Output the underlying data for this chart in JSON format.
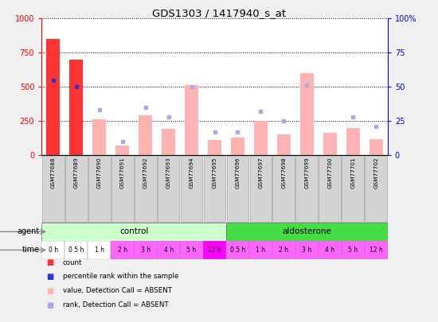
{
  "title": "GDS1303 / 1417940_s_at",
  "samples": [
    "GSM77688",
    "GSM77689",
    "GSM77690",
    "GSM77691",
    "GSM77692",
    "GSM77693",
    "GSM77694",
    "GSM77695",
    "GSM77696",
    "GSM77697",
    "GSM77698",
    "GSM77699",
    "GSM77700",
    "GSM77701",
    "GSM77702"
  ],
  "bar_values": [
    850,
    700,
    260,
    70,
    290,
    190,
    510,
    110,
    130,
    250,
    150,
    600,
    160,
    195,
    115
  ],
  "dot_values": [
    55,
    50,
    33,
    10,
    35,
    28,
    50,
    17,
    17,
    32,
    25,
    51,
    null,
    28,
    21
  ],
  "bar_color_absent": "#FFB3B3",
  "bar_color_present": "#FF3333",
  "dot_color_absent": "#AAAADD",
  "dot_color_present": "#3333CC",
  "absent_mask": [
    false,
    false,
    true,
    true,
    true,
    true,
    true,
    true,
    true,
    true,
    true,
    true,
    true,
    true,
    true
  ],
  "ylim_left": [
    0,
    1000
  ],
  "ylim_right": [
    0,
    100
  ],
  "yticks_left": [
    0,
    250,
    500,
    750,
    1000
  ],
  "yticks_right": [
    0,
    25,
    50,
    75,
    100
  ],
  "time_labels": [
    "0 h",
    "0.5 h",
    "1 h",
    "2 h",
    "3 h",
    "4 h",
    "5 h",
    "12 h",
    "0.5 h",
    "1 h",
    "2 h",
    "3 h",
    "4 h",
    "5 h",
    "12 h"
  ],
  "time_bg_white": [
    0,
    1,
    2
  ],
  "time_bg_pink": [
    3,
    4,
    5,
    6,
    7,
    8,
    9,
    10,
    11,
    12,
    13,
    14
  ],
  "time_color_white": "#FFFFFF",
  "time_color_pink": "#FF66FF",
  "time_color_dark_pink": "#FF00FF",
  "control_color_light": "#CCFFCC",
  "aldosterone_color": "#44DD44",
  "xtick_bg": "#D4D4D4",
  "plot_bg": "#FFFFFF",
  "left_axis_color": "#FF0000",
  "right_axis_color": "#0000FF",
  "fig_bg": "#F0F0F0"
}
